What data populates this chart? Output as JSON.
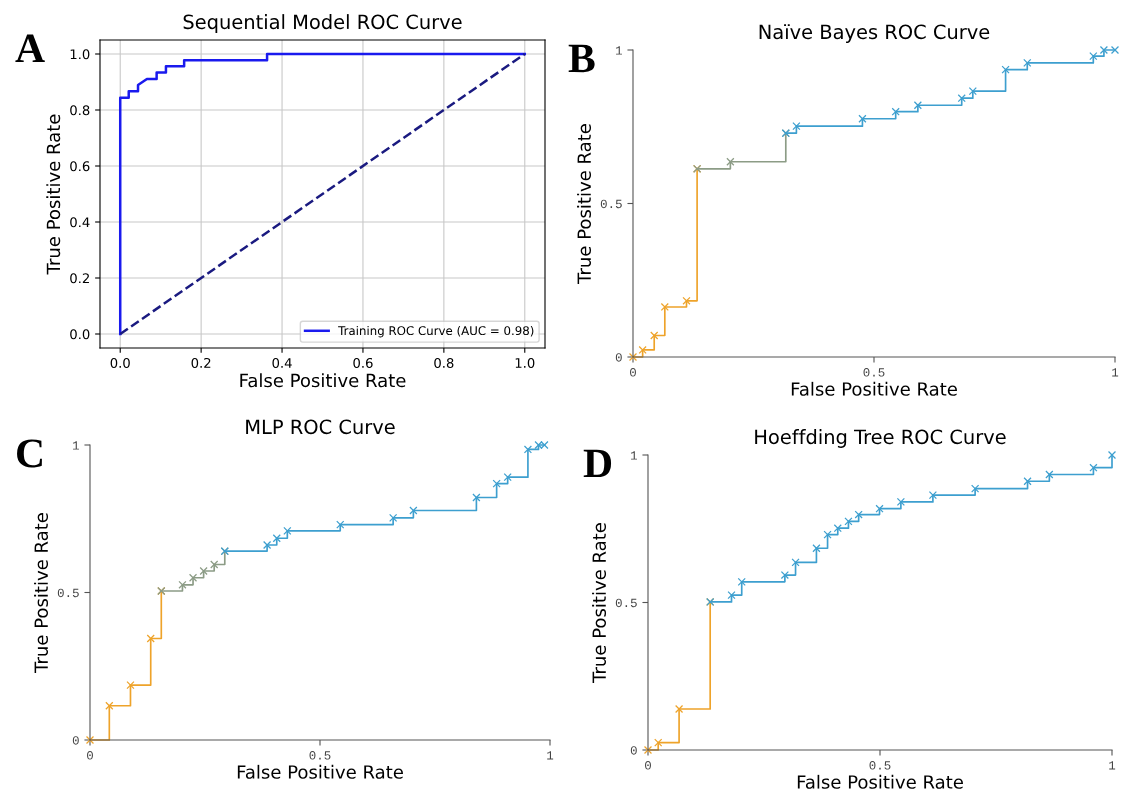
{
  "chart_data": [
    {
      "type": "line",
      "title": "Sequential Model ROC Curve",
      "xlabel": "False Positive Rate",
      "ylabel": "True Positive Rate",
      "annotations": [
        "A"
      ],
      "xlim": [
        -0.05,
        1.05
      ],
      "ylim": [
        -0.05,
        1.05
      ],
      "xticks": [
        {
          "value": 0,
          "label": "0.0"
        },
        {
          "value": 0.2,
          "label": "0.2"
        },
        {
          "value": 0.4,
          "label": "0.4"
        },
        {
          "value": 0.6,
          "label": "0.6"
        },
        {
          "value": 0.8,
          "label": "0.8"
        },
        {
          "value": 1,
          "label": "1.0"
        }
      ],
      "yticks": [
        {
          "value": 0,
          "label": "0.0"
        },
        {
          "value": 0.2,
          "label": "0.2"
        },
        {
          "value": 0.4,
          "label": "0.4"
        },
        {
          "value": 0.6,
          "label": "0.6"
        },
        {
          "value": 0.8,
          "label": "0.8"
        },
        {
          "value": 1,
          "label": "1.0"
        }
      ],
      "grid": true,
      "legend": "bottom right",
      "series": [
        {
          "name": "Training ROC Curve (AUC = 0.98)",
          "color": "#1a1aee",
          "x": [
            0,
            0,
            0.021,
            0.021,
            0.044,
            0.044,
            0.066,
            0.09,
            0.09,
            0.113,
            0.113,
            0.158,
            0.158,
            0.363,
            0.363,
            1
          ],
          "values": [
            0,
            0.844,
            0.844,
            0.867,
            0.867,
            0.889,
            0.911,
            0.911,
            0.934,
            0.934,
            0.956,
            0.956,
            0.978,
            0.978,
            1.0,
            1.0
          ]
        },
        {
          "color": "#1a1a80",
          "line_style": "dashed",
          "x": [
            0,
            1
          ],
          "values": [
            0,
            1
          ]
        }
      ]
    },
    {
      "type": "step",
      "title": "Naïve Bayes ROC Curve",
      "xlabel": "False Positive Rate",
      "ylabel": "True Positive Rate",
      "annotations": [
        "B"
      ],
      "xlim": [
        0,
        1
      ],
      "ylim": [
        0,
        1
      ],
      "xticks": [
        0,
        0.5,
        1
      ],
      "yticks": [
        0,
        0.5,
        1
      ],
      "marker": "cross",
      "series": [
        {
          "color": "#eea32a",
          "x": [
            0,
            0.02,
            0.044,
            0.066,
            0.111,
            0.133
          ],
          "values": [
            0,
            0.023,
            0.07,
            0.163,
            0.183,
            0.613
          ]
        },
        {
          "color": "#8c9c86",
          "x": [
            0.133,
            0.202,
            0.317
          ],
          "values": [
            0.613,
            0.636,
            0.729
          ]
        },
        {
          "color": "#3d9fcf",
          "x": [
            0.317,
            0.339,
            0.476,
            0.545,
            0.591,
            0.682,
            0.705,
            0.773,
            0.818,
            0.955,
            0.977,
            1.0
          ],
          "values": [
            0.729,
            0.752,
            0.776,
            0.799,
            0.82,
            0.843,
            0.866,
            0.936,
            0.958,
            0.98,
            1.0,
            1.0
          ]
        }
      ]
    },
    {
      "type": "step",
      "title": "MLP ROC Curve",
      "xlabel": "False Positive Rate",
      "ylabel": "True Positive Rate",
      "annotations": [
        "C"
      ],
      "xlim": [
        0,
        1
      ],
      "ylim": [
        0,
        1
      ],
      "xticks": [
        0,
        0.5,
        1
      ],
      "yticks": [
        0,
        0.5,
        1
      ],
      "marker": "cross",
      "series": [
        {
          "color": "#eea32a",
          "x": [
            0,
            0.042,
            0.088,
            0.132,
            0.155
          ],
          "values": [
            0,
            0.116,
            0.186,
            0.344,
            0.505
          ]
        },
        {
          "color": "#8c9c86",
          "x": [
            0.155,
            0.201,
            0.224,
            0.247,
            0.27,
            0.293
          ],
          "values": [
            0.505,
            0.526,
            0.55,
            0.573,
            0.595,
            0.64
          ]
        },
        {
          "color": "#3d9fcf",
          "x": [
            0.293,
            0.385,
            0.406,
            0.429,
            0.544,
            0.659,
            0.703,
            0.84,
            0.884,
            0.908,
            0.952,
            0.975,
            0.988
          ],
          "values": [
            0.64,
            0.661,
            0.684,
            0.709,
            0.73,
            0.753,
            0.778,
            0.822,
            0.869,
            0.891,
            0.985,
            1.0,
            1.0
          ]
        }
      ]
    },
    {
      "type": "step",
      "title": "Hoeffding Tree ROC Curve",
      "xlabel": "False Positive Rate",
      "ylabel": "True Positive Rate",
      "annotations": [
        "D"
      ],
      "xlim": [
        0,
        1
      ],
      "ylim": [
        0,
        1
      ],
      "xticks": [
        0,
        0.5,
        1
      ],
      "yticks": [
        0,
        0.5,
        1
      ],
      "marker": "cross",
      "series": [
        {
          "color": "#eea32a",
          "x": [
            0,
            0.022,
            0.067,
            0.134
          ],
          "values": [
            0,
            0.025,
            0.139,
            0.502
          ]
        },
        {
          "color": "#3d9fcf",
          "x": [
            0.134,
            0.18,
            0.202,
            0.295,
            0.318,
            0.363,
            0.387,
            0.409,
            0.432,
            0.454,
            0.499,
            0.545,
            0.614,
            0.705,
            0.818,
            0.865,
            0.96,
            1.0
          ],
          "values": [
            0.502,
            0.525,
            0.57,
            0.593,
            0.636,
            0.684,
            0.73,
            0.752,
            0.775,
            0.798,
            0.818,
            0.841,
            0.864,
            0.886,
            0.911,
            0.934,
            0.957,
            1.0
          ]
        }
      ]
    }
  ]
}
